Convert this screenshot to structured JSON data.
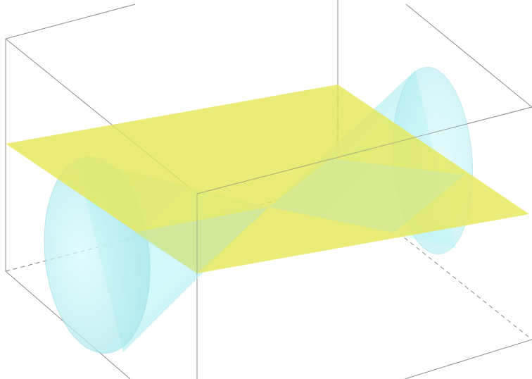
{
  "figure": {
    "description_hidden": "",
    "colors": {
      "background": "#ffffff",
      "box_edge": "#8c8c8c",
      "box_edge_hidden": "#7a7a7a",
      "cone_fill": "#a6f0f3",
      "cone_fill_light": "#d8ffff",
      "cone_shade": "#7cc9d4",
      "plane_fill": "#e6e85a",
      "plane_overlap": "#bfe6b8"
    },
    "layers": [
      "bounding-box",
      "double-cone",
      "plane"
    ]
  }
}
